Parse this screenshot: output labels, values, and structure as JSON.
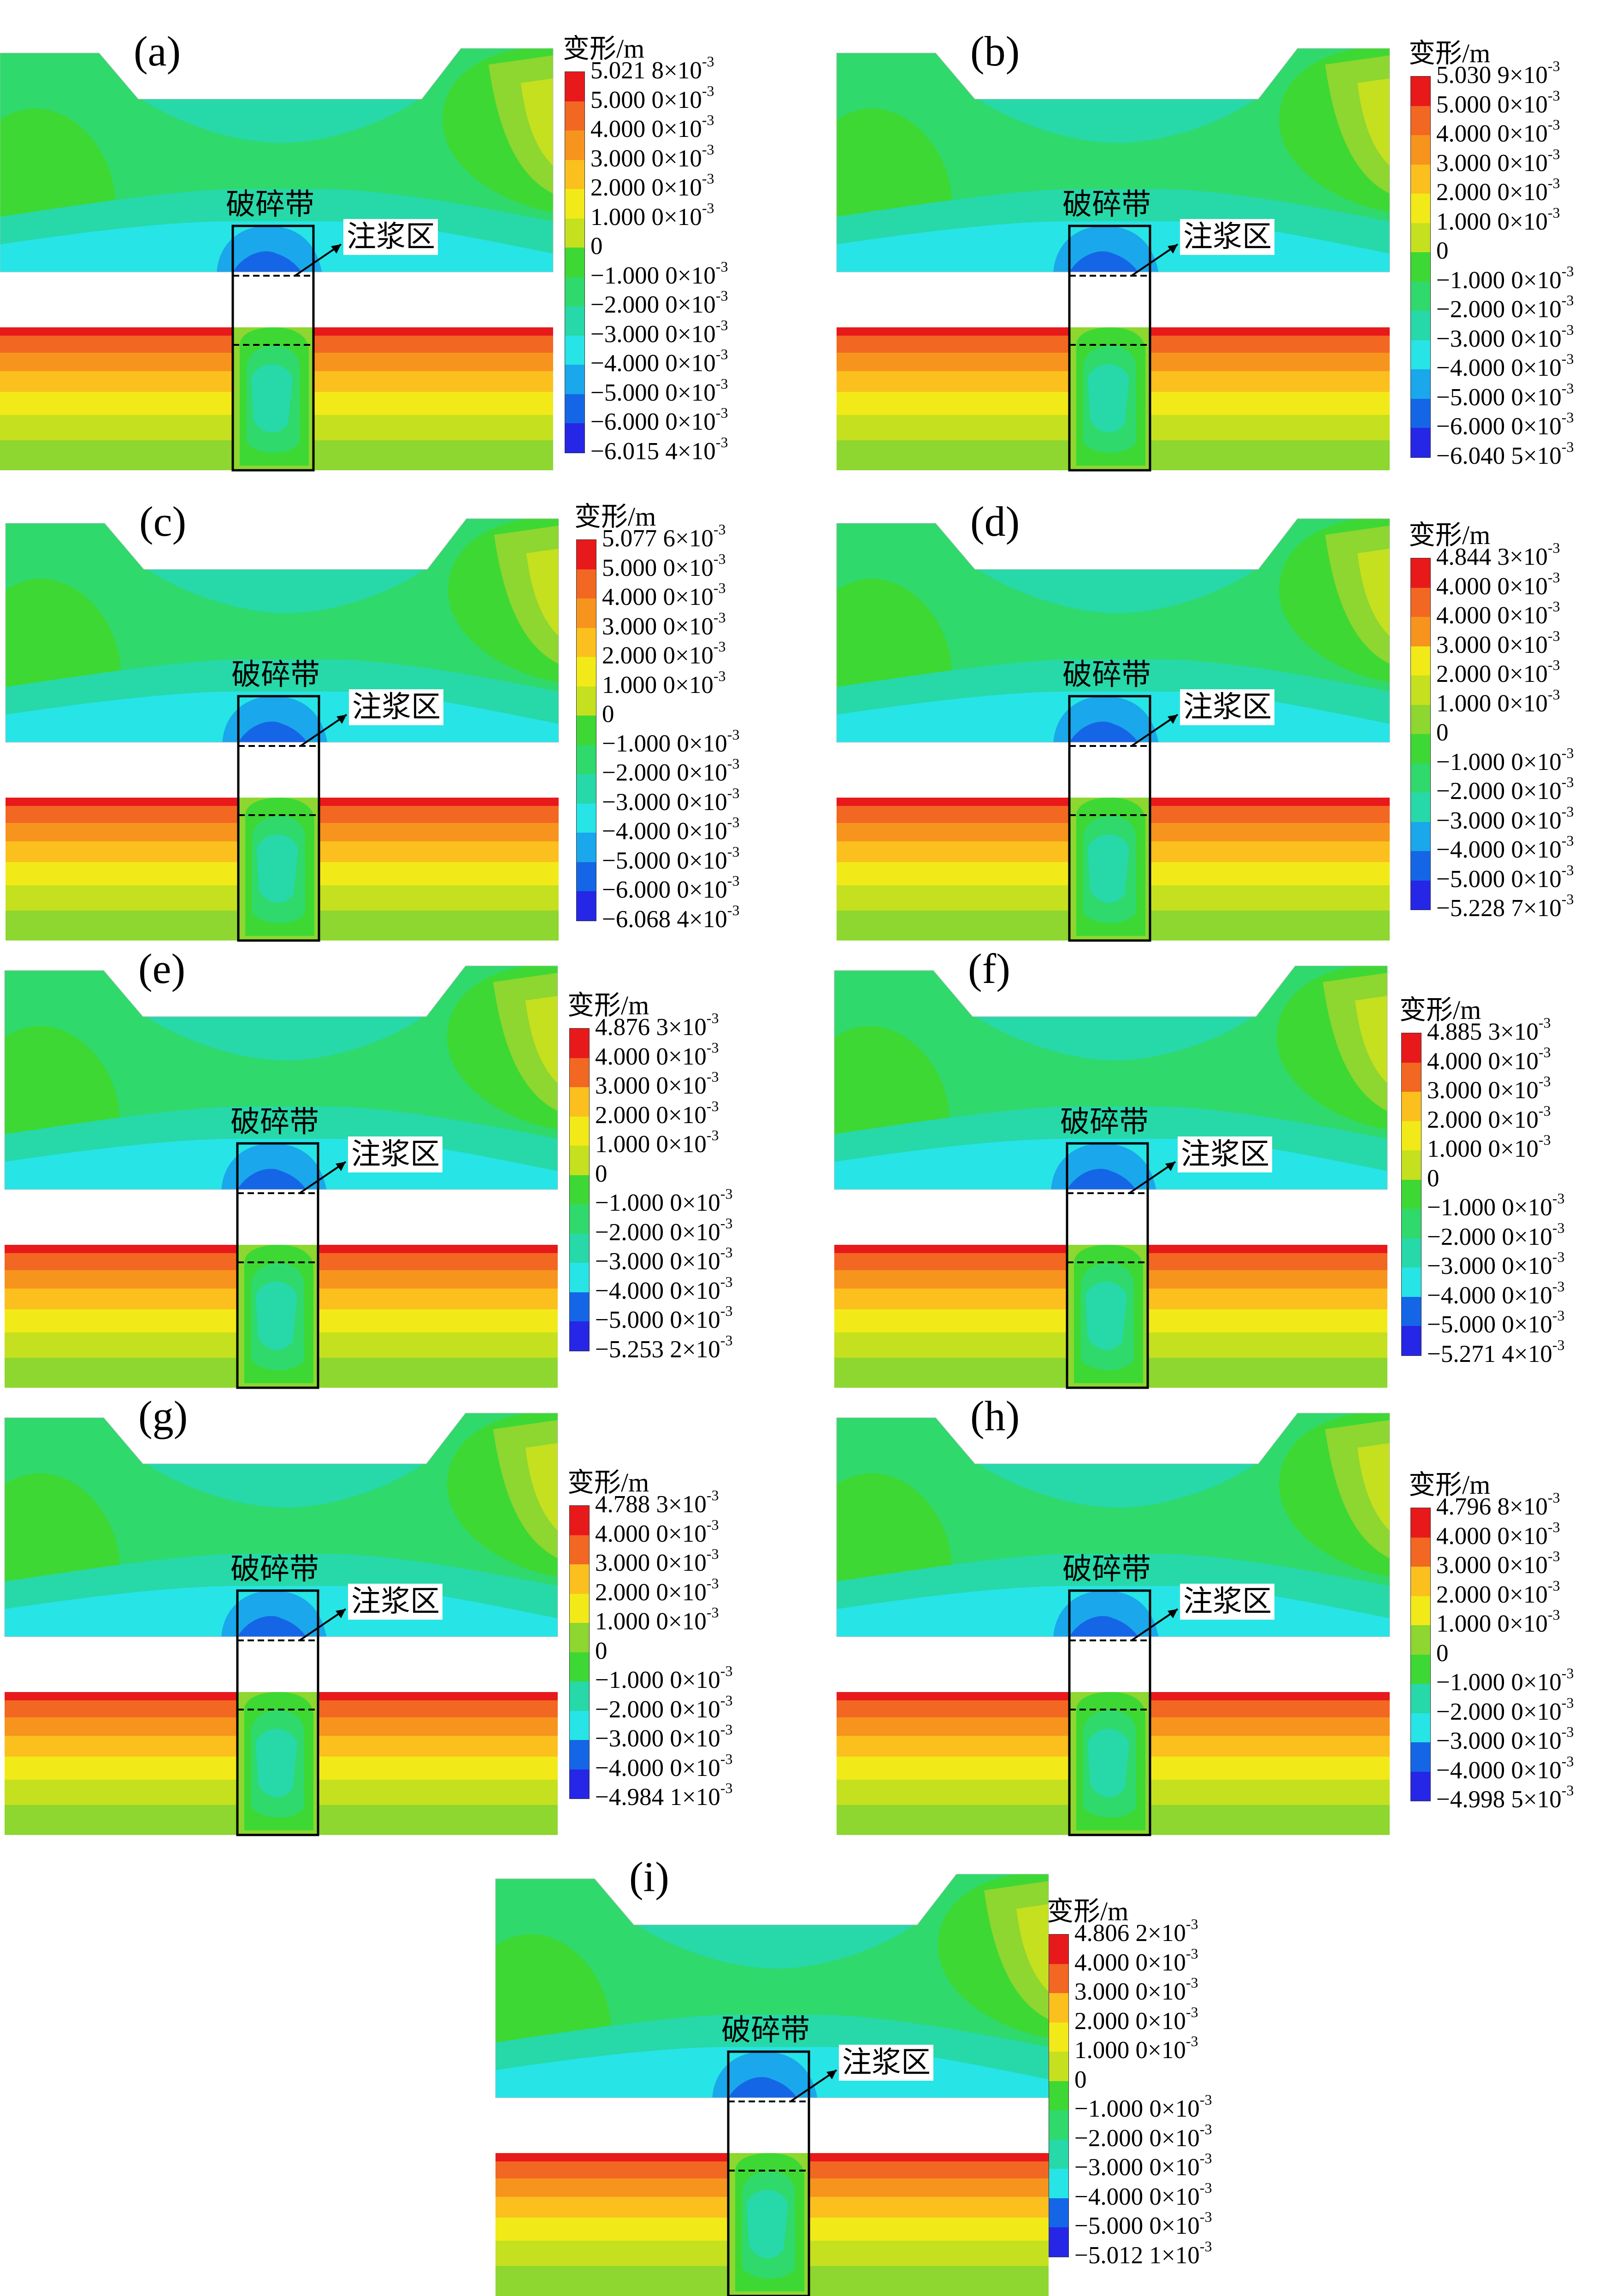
{
  "figure": {
    "legend_title": "变形/m",
    "label_fault": "破碎带",
    "label_grout": "注浆区",
    "colors": {
      "red": "#e8191b",
      "orange_red": "#f26722",
      "orange": "#f7941d",
      "amber": "#fbc01e",
      "yellow": "#f2ea18",
      "yellow_green": "#c5e01f",
      "light_green": "#8ed630",
      "green": "#3ed834",
      "green_2": "#2fd96c",
      "aqua_green": "#27d8a9",
      "cyan": "#27e4e6",
      "sky": "#1aa7eb",
      "blue": "#1566e6",
      "deep_blue": "#2626e6"
    },
    "panels": [
      {
        "label": "(a)",
        "ticks": [
          {
            "m": "5.021 8",
            "e": "-3"
          },
          {
            "m": "5.000 0",
            "e": "-3"
          },
          {
            "m": "4.000 0",
            "e": "-3"
          },
          {
            "m": "3.000 0",
            "e": "-3"
          },
          {
            "m": "2.000 0",
            "e": "-3"
          },
          {
            "m": "1.000 0",
            "e": "-3"
          },
          {
            "m": "0",
            "e": ""
          },
          {
            "m": "−1.000 0",
            "e": "-3"
          },
          {
            "m": "−2.000 0",
            "e": "-3"
          },
          {
            "m": "−3.000 0",
            "e": "-3"
          },
          {
            "m": "−4.000 0",
            "e": "-3"
          },
          {
            "m": "−5.000 0",
            "e": "-3"
          },
          {
            "m": "−6.000 0",
            "e": "-3"
          },
          {
            "m": "−6.015 4",
            "e": "-3"
          }
        ]
      },
      {
        "label": "(b)",
        "ticks": [
          {
            "m": "5.030 9",
            "e": "-3"
          },
          {
            "m": "5.000 0",
            "e": "-3"
          },
          {
            "m": "4.000 0",
            "e": "-3"
          },
          {
            "m": "3.000 0",
            "e": "-3"
          },
          {
            "m": "2.000 0",
            "e": "-3"
          },
          {
            "m": "1.000 0",
            "e": "-3"
          },
          {
            "m": "0",
            "e": ""
          },
          {
            "m": "−1.000 0",
            "e": "-3"
          },
          {
            "m": "−2.000 0",
            "e": "-3"
          },
          {
            "m": "−3.000 0",
            "e": "-3"
          },
          {
            "m": "−4.000 0",
            "e": "-3"
          },
          {
            "m": "−5.000 0",
            "e": "-3"
          },
          {
            "m": "−6.000 0",
            "e": "-3"
          },
          {
            "m": "−6.040 5",
            "e": "-3"
          }
        ]
      },
      {
        "label": "(c)",
        "ticks": [
          {
            "m": "5.077 6",
            "e": "-3"
          },
          {
            "m": "5.000 0",
            "e": "-3"
          },
          {
            "m": "4.000 0",
            "e": "-3"
          },
          {
            "m": "3.000 0",
            "e": "-3"
          },
          {
            "m": "2.000 0",
            "e": "-3"
          },
          {
            "m": "1.000 0",
            "e": "-3"
          },
          {
            "m": "0",
            "e": ""
          },
          {
            "m": "−1.000 0",
            "e": "-3"
          },
          {
            "m": "−2.000 0",
            "e": "-3"
          },
          {
            "m": "−3.000 0",
            "e": "-3"
          },
          {
            "m": "−4.000 0",
            "e": "-3"
          },
          {
            "m": "−5.000 0",
            "e": "-3"
          },
          {
            "m": "−6.000 0",
            "e": "-3"
          },
          {
            "m": "−6.068 4",
            "e": "-3"
          }
        ]
      },
      {
        "label": "(d)",
        "ticks": [
          {
            "m": "4.844 3",
            "e": "-3"
          },
          {
            "m": "4.000 0",
            "e": "-3"
          },
          {
            "m": "4.000 0",
            "e": "-3"
          },
          {
            "m": "3.000 0",
            "e": "-3"
          },
          {
            "m": "2.000 0",
            "e": "-3"
          },
          {
            "m": "1.000 0",
            "e": "-3"
          },
          {
            "m": "0",
            "e": ""
          },
          {
            "m": "−1.000 0",
            "e": "-3"
          },
          {
            "m": "−2.000 0",
            "e": "-3"
          },
          {
            "m": "−3.000 0",
            "e": "-3"
          },
          {
            "m": "−4.000 0",
            "e": "-3"
          },
          {
            "m": "−5.000 0",
            "e": "-3"
          },
          {
            "m": "−5.228 7",
            "e": "-3"
          }
        ]
      },
      {
        "label": "(e)",
        "ticks": [
          {
            "m": "4.876 3",
            "e": "-3"
          },
          {
            "m": "4.000 0",
            "e": "-3"
          },
          {
            "m": "3.000 0",
            "e": "-3"
          },
          {
            "m": "2.000 0",
            "e": "-3"
          },
          {
            "m": "1.000 0",
            "e": "-3"
          },
          {
            "m": "0",
            "e": ""
          },
          {
            "m": "−1.000 0",
            "e": "-3"
          },
          {
            "m": "−2.000 0",
            "e": "-3"
          },
          {
            "m": "−3.000 0",
            "e": "-3"
          },
          {
            "m": "−4.000 0",
            "e": "-3"
          },
          {
            "m": "−5.000 0",
            "e": "-3"
          },
          {
            "m": "−5.253 2",
            "e": "-3"
          }
        ]
      },
      {
        "label": "(f)",
        "ticks": [
          {
            "m": "4.885 3",
            "e": "-3"
          },
          {
            "m": "4.000 0",
            "e": "-3"
          },
          {
            "m": "3.000 0",
            "e": "-3"
          },
          {
            "m": "2.000 0",
            "e": "-3"
          },
          {
            "m": "1.000 0",
            "e": "-3"
          },
          {
            "m": "0",
            "e": ""
          },
          {
            "m": "−1.000 0",
            "e": "-3"
          },
          {
            "m": "−2.000 0",
            "e": "-3"
          },
          {
            "m": "−3.000 0",
            "e": "-3"
          },
          {
            "m": "−4.000 0",
            "e": "-3"
          },
          {
            "m": "−5.000 0",
            "e": "-3"
          },
          {
            "m": "−5.271 4",
            "e": "-3"
          }
        ]
      },
      {
        "label": "(g)",
        "ticks": [
          {
            "m": "4.788 3",
            "e": "-3"
          },
          {
            "m": "4.000 0",
            "e": "-3"
          },
          {
            "m": "3.000 0",
            "e": "-3"
          },
          {
            "m": "2.000 0",
            "e": "-3"
          },
          {
            "m": "1.000 0",
            "e": "-3"
          },
          {
            "m": "0",
            "e": ""
          },
          {
            "m": "−1.000 0",
            "e": "-3"
          },
          {
            "m": "−2.000 0",
            "e": "-3"
          },
          {
            "m": "−3.000 0",
            "e": "-3"
          },
          {
            "m": "−4.000 0",
            "e": "-3"
          },
          {
            "m": "−4.984 1",
            "e": "-3"
          }
        ]
      },
      {
        "label": "(h)",
        "ticks": [
          {
            "m": "4.796 8",
            "e": "-3"
          },
          {
            "m": "4.000 0",
            "e": "-3"
          },
          {
            "m": "3.000 0",
            "e": "-3"
          },
          {
            "m": "2.000 0",
            "e": "-3"
          },
          {
            "m": "1.000 0",
            "e": "-3"
          },
          {
            "m": "0",
            "e": ""
          },
          {
            "m": "−1.000 0",
            "e": "-3"
          },
          {
            "m": "−2.000 0",
            "e": "-3"
          },
          {
            "m": "−3.000 0",
            "e": "-3"
          },
          {
            "m": "−4.000 0",
            "e": "-3"
          },
          {
            "m": "−4.998 5",
            "e": "-3"
          }
        ]
      },
      {
        "label": "(i)",
        "ticks": [
          {
            "m": "4.806 2",
            "e": "-3"
          },
          {
            "m": "4.000 0",
            "e": "-3"
          },
          {
            "m": "3.000 0",
            "e": "-3"
          },
          {
            "m": "2.000 0",
            "e": "-3"
          },
          {
            "m": "1.000 0",
            "e": "-3"
          },
          {
            "m": "0",
            "e": ""
          },
          {
            "m": "−1.000 0",
            "e": "-3"
          },
          {
            "m": "−2.000 0",
            "e": "-3"
          },
          {
            "m": "−3.000 0",
            "e": "-3"
          },
          {
            "m": "−4.000 0",
            "e": "-3"
          },
          {
            "m": "−5.000 0",
            "e": "-3"
          },
          {
            "m": "−5.012 1",
            "e": "-3"
          }
        ]
      }
    ]
  }
}
